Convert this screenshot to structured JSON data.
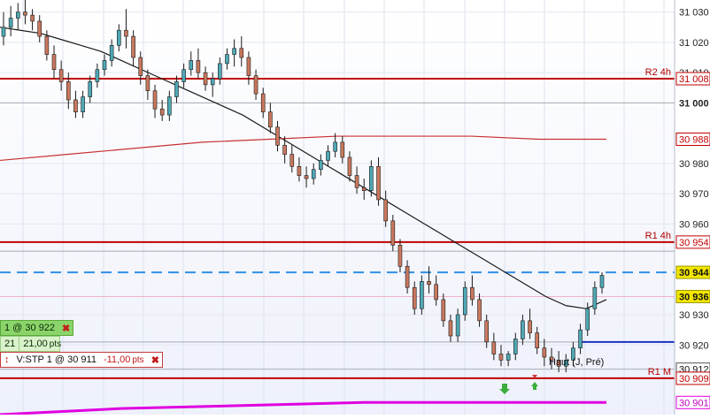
{
  "colors": {
    "background": "#ffffff",
    "candle_up": "#4fa8b5",
    "candle_down": "#c9785e",
    "ma": "#1a1a1a",
    "level_red": "#c00000",
    "ma_red": "#c83030",
    "pink": "#e000e0",
    "blue_dash": "#2f8fe6",
    "blue_solid": "#1b2fbf",
    "bid_label": "#f2e600"
  },
  "chart_data": {
    "type": "candlestick",
    "instrument": "",
    "y_axis": {
      "min": 30897,
      "max": 31034,
      "ticks": [
        {
          "value": 31030,
          "label": "31 030"
        },
        {
          "value": 31020,
          "label": "31 020"
        },
        {
          "value": 31010,
          "label": "31 010"
        },
        {
          "value": 31000,
          "label": "31 000",
          "bold": true
        },
        {
          "value": 30980,
          "label": "30 980"
        },
        {
          "value": 30970,
          "label": "30 970"
        },
        {
          "value": 30960,
          "label": "30 960"
        },
        {
          "value": 30930,
          "label": "30 930"
        },
        {
          "value": 30920,
          "label": "30 920"
        }
      ]
    },
    "price_tags": [
      {
        "value": 31008,
        "label": "31 008",
        "style": "red"
      },
      {
        "value": 30988,
        "label": "30 988",
        "style": "red"
      },
      {
        "value": 30954,
        "label": "30 954",
        "style": "red"
      },
      {
        "value": 30944,
        "label": "30 944",
        "style": "bid"
      },
      {
        "value": 30936,
        "label": "30 936",
        "style": "bid"
      },
      {
        "value": 30912,
        "label": "30 912",
        "style": "plain"
      },
      {
        "value": 30909,
        "label": "30 909",
        "style": "red"
      },
      {
        "value": 30901,
        "label": "30 901",
        "style": "pink"
      }
    ],
    "levels": [
      {
        "name": "R2 4h",
        "value": 31008
      },
      {
        "name": "R1 4h",
        "value": 30954
      },
      {
        "name": "R1 M",
        "value": 30909
      }
    ],
    "horizontal_lines": [
      {
        "value": 31000,
        "style": "gray"
      },
      {
        "value": 30951,
        "style": "gray"
      },
      {
        "value": 30921,
        "style": "gray"
      },
      {
        "value": 30912,
        "style": "gray"
      },
      {
        "value": 30944,
        "style": "blue-dash"
      },
      {
        "value": 30936,
        "style": "pink-thin"
      }
    ],
    "blue_segment": {
      "value": 30921
    },
    "ohlc": [
      [
        31022,
        31030,
        31019,
        31025
      ],
      [
        31025,
        31032,
        31022,
        31028
      ],
      [
        31028,
        31033,
        31024,
        31030
      ],
      [
        31030,
        31034,
        31026,
        31029
      ],
      [
        31029,
        31031,
        31024,
        31027
      ],
      [
        31027,
        31029,
        31020,
        31022
      ],
      [
        31022,
        31024,
        31014,
        31016
      ],
      [
        31016,
        31019,
        31008,
        31011
      ],
      [
        31011,
        31014,
        31004,
        31007
      ],
      [
        31007,
        31010,
        30998,
        31001
      ],
      [
        31001,
        31004,
        30995,
        30997
      ],
      [
        30997,
        31004,
        30995,
        31002
      ],
      [
        31002,
        31009,
        31000,
        31007
      ],
      [
        31007,
        31013,
        31005,
        31011
      ],
      [
        31011,
        31016,
        31009,
        31014
      ],
      [
        31014,
        31021,
        31012,
        31019
      ],
      [
        31019,
        31026,
        31017,
        31024
      ],
      [
        31024,
        31031,
        31018,
        31022
      ],
      [
        31022,
        31024,
        31012,
        31015
      ],
      [
        31015,
        31017,
        31006,
        31009
      ],
      [
        31009,
        31011,
        31001,
        31004
      ],
      [
        31004,
        31006,
        30995,
        30998
      ],
      [
        30998,
        31001,
        30994,
        30996
      ],
      [
        30996,
        31004,
        30994,
        31002
      ],
      [
        31002,
        31009,
        31000,
        31007
      ],
      [
        31007,
        31013,
        31005,
        31011
      ],
      [
        31011,
        31017,
        31009,
        31014
      ],
      [
        31014,
        31018,
        31008,
        31010
      ],
      [
        31010,
        31012,
        31004,
        31006
      ],
      [
        31006,
        31010,
        31002,
        31008
      ],
      [
        31008,
        31015,
        31006,
        31013
      ],
      [
        31013,
        31018,
        31011,
        31016
      ],
      [
        31016,
        31021,
        31012,
        31018
      ],
      [
        31018,
        31022,
        31012,
        31015
      ],
      [
        31015,
        31017,
        31006,
        31009
      ],
      [
        31009,
        31011,
        31001,
        31003
      ],
      [
        31003,
        31005,
        30995,
        30997
      ],
      [
        30997,
        31000,
        30990,
        30992
      ],
      [
        30992,
        30994,
        30984,
        30986
      ],
      [
        30986,
        30989,
        30980,
        30983
      ],
      [
        30983,
        30986,
        30977,
        30979
      ],
      [
        30979,
        30982,
        30974,
        30976
      ],
      [
        30976,
        30979,
        30972,
        30975
      ],
      [
        30975,
        30980,
        30973,
        30978
      ],
      [
        30978,
        30983,
        30976,
        30981
      ],
      [
        30981,
        30986,
        30979,
        30984
      ],
      [
        30984,
        30990,
        30982,
        30987
      ],
      [
        30987,
        30989,
        30980,
        30982
      ],
      [
        30982,
        30984,
        30974,
        30976
      ],
      [
        30976,
        30979,
        30970,
        30972
      ],
      [
        30972,
        30975,
        30968,
        30971
      ],
      [
        30971,
        30981,
        30969,
        30979
      ],
      [
        30979,
        30982,
        30966,
        30968
      ],
      [
        30968,
        30971,
        30959,
        30961
      ],
      [
        30961,
        30963,
        30951,
        30953
      ],
      [
        30953,
        30955,
        30944,
        30946
      ],
      [
        30946,
        30948,
        30937,
        30939
      ],
      [
        30939,
        30941,
        30930,
        30932
      ],
      [
        30932,
        30943,
        30930,
        30941
      ],
      [
        30941,
        30946,
        30937,
        30940
      ],
      [
        30940,
        30943,
        30933,
        30935
      ],
      [
        30935,
        30937,
        30926,
        30928
      ],
      [
        30928,
        30930,
        30921,
        30923
      ],
      [
        30923,
        30932,
        30921,
        30930
      ],
      [
        30930,
        30941,
        30928,
        30939
      ],
      [
        30939,
        30943,
        30933,
        30935
      ],
      [
        30935,
        30937,
        30926,
        30928
      ],
      [
        30928,
        30930,
        30919,
        30921
      ],
      [
        30921,
        30924,
        30915,
        30917
      ],
      [
        30917,
        30920,
        30913,
        30915
      ],
      [
        30915,
        30918,
        30913,
        30917
      ],
      [
        30917,
        30924,
        30915,
        30922
      ],
      [
        30922,
        30930,
        30920,
        30928
      ],
      [
        30928,
        30932,
        30922,
        30924
      ],
      [
        30924,
        30926,
        30917,
        30919
      ],
      [
        30919,
        30922,
        30913,
        30916
      ],
      [
        30916,
        30919,
        30912,
        30915
      ],
      [
        30915,
        30918,
        30911,
        30913
      ],
      [
        30913,
        30917,
        30911,
        30915
      ],
      [
        30915,
        30921,
        30913,
        30919
      ],
      [
        30919,
        30927,
        30917,
        30925
      ],
      [
        30925,
        30934,
        30923,
        30932
      ],
      [
        30932,
        30941,
        30930,
        30939
      ],
      [
        30939,
        30944,
        30937,
        30943
      ]
    ],
    "ma_black": [
      31025,
      31024,
      31023,
      31021,
      31019,
      31017,
      31014,
      31011,
      31008,
      31005,
      31002,
      30999,
      30996,
      30992,
      30988,
      30984,
      30980,
      30976,
      30972,
      30968,
      30964,
      30960,
      30956,
      30952,
      30948,
      30944,
      30940,
      30936,
      30933,
      30932,
      30935
    ],
    "ma_red": [
      30981,
      30983,
      30985,
      30987,
      30988,
      30989,
      30989,
      30989,
      30988,
      30988
    ],
    "ma_pink": [
      30897,
      30899,
      30900,
      30901,
      30901,
      30901
    ],
    "annotations": [
      {
        "text": "Haut (J, Pré)",
        "value": 30913
      }
    ]
  },
  "orders": [
    {
      "qty_label": "1 @ 30 922",
      "close_symbol": "✖"
    },
    {
      "qty_short": "21",
      "pts_label": "21,00",
      "pts_unit": "pts"
    },
    {
      "icon": "↕",
      "label": "V:STP  1 @ 30 911",
      "pts_label": "-11,00",
      "pts_unit": "pts",
      "close_symbol": "✖"
    }
  ]
}
